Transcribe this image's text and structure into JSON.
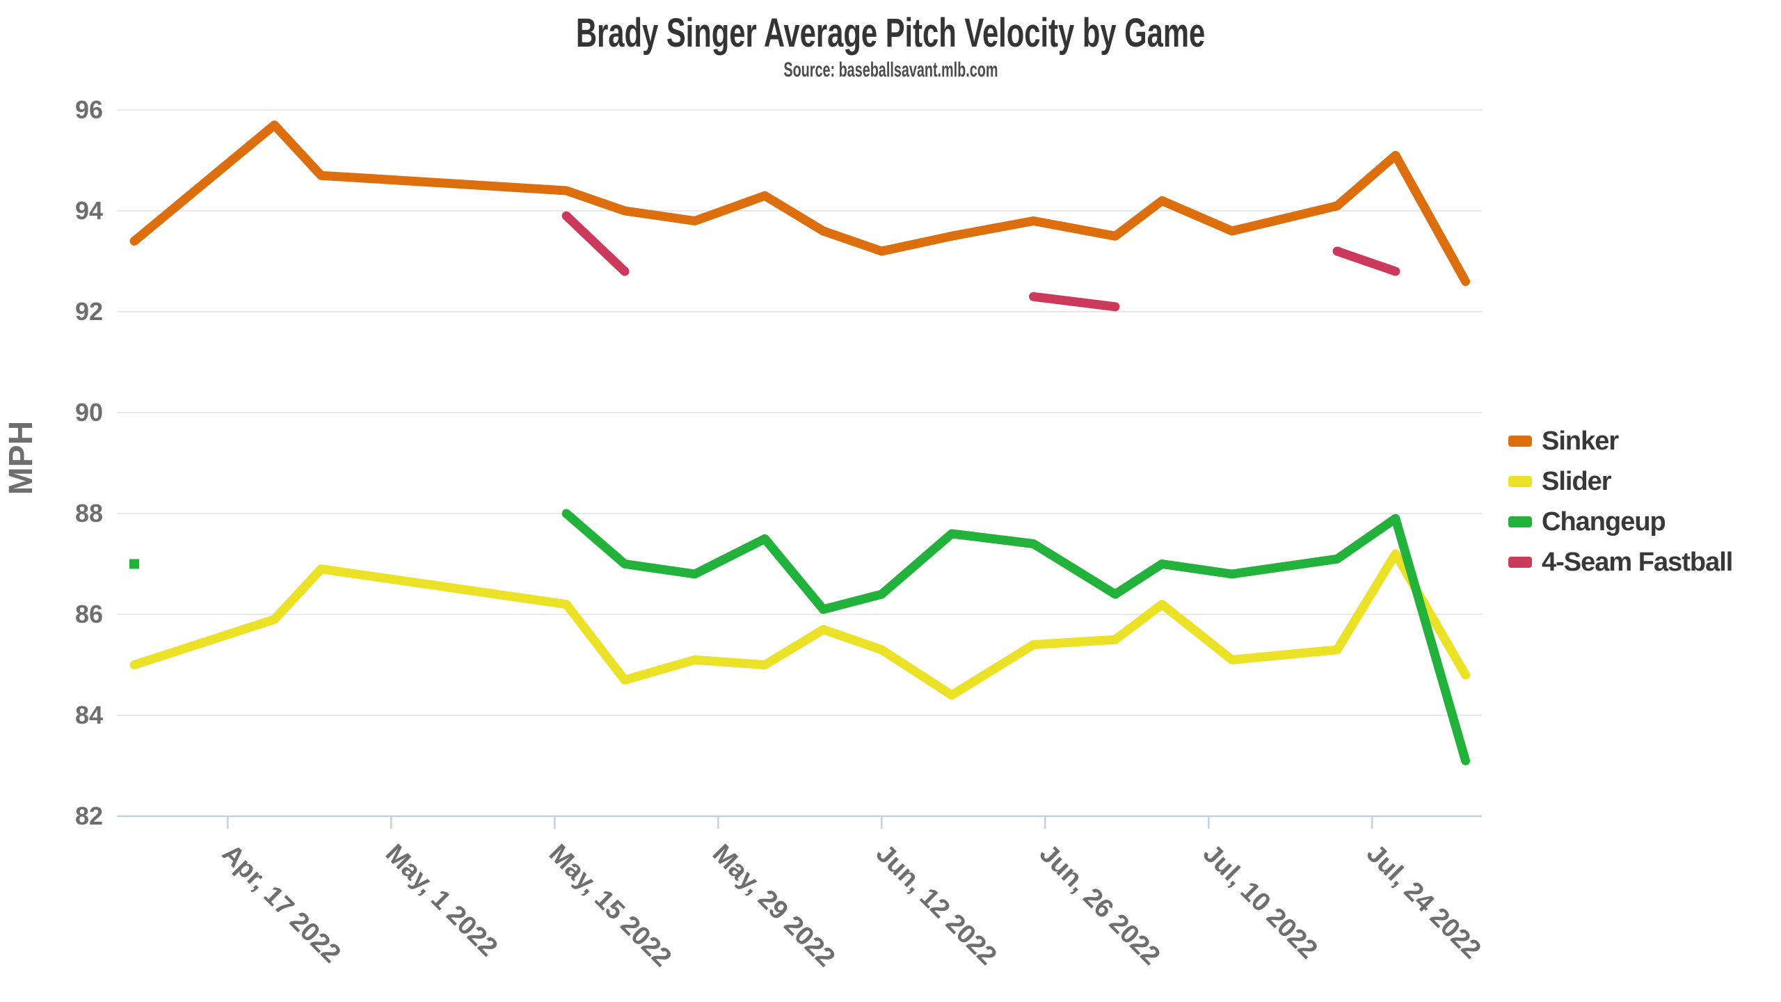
{
  "header": {
    "title": "Brady Singer Average Pitch Velocity by Game",
    "subtitle": "Source: baseballsavant.mlb.com"
  },
  "chart_data": {
    "type": "line",
    "title": "Brady Singer Average Pitch Velocity by Game",
    "subtitle": "Source: baseballsavant.mlb.com",
    "ylabel": "MPH",
    "ylim": [
      82,
      96.6
    ],
    "yticks": [
      82,
      84,
      86,
      88,
      90,
      92,
      94,
      96
    ],
    "gridlines": "horizontal",
    "legend_position": "right",
    "legend_labels": [
      "Sinker",
      "Slider",
      "Changeup",
      "4-Seam Fastball"
    ],
    "x_axis": {
      "unit": "game-date",
      "start_date_label": "Apr 9 2022",
      "tick_labels": [
        "Apr, 17 2022",
        "May, 1 2022",
        "May, 15 2022",
        "May, 29 2022",
        "Jun, 12 2022",
        "Jun, 26 2022",
        "Jul, 10 2022",
        "Jul, 24 2022"
      ],
      "tick_day_offsets": [
        8,
        22,
        36,
        50,
        64,
        78,
        92,
        106
      ],
      "label_rotation_deg": 45
    },
    "games": {
      "dates": [
        "Apr 9",
        "Apr 21",
        "Apr 25",
        "May 16",
        "May 21",
        "May 27",
        "Jun 2",
        "Jun 7",
        "Jun 12",
        "Jun 18",
        "Jun 25",
        "Jul 2",
        "Jul 6",
        "Jul 12",
        "Jul 21",
        "Jul 26",
        "Aug 1"
      ],
      "day_offsets": [
        0,
        12,
        16,
        37,
        42,
        48,
        54,
        59,
        64,
        70,
        77,
        84,
        88,
        94,
        103,
        108,
        114
      ]
    },
    "series": [
      {
        "id": "sinker",
        "name": "Sinker",
        "color": "#DC6E0D",
        "values": [
          93.4,
          95.7,
          94.7,
          94.4,
          94.0,
          93.8,
          94.3,
          93.6,
          93.2,
          93.5,
          93.8,
          93.5,
          94.2,
          93.6,
          94.1,
          95.1,
          92.6
        ]
      },
      {
        "id": "slider",
        "name": "Slider",
        "color": "#EBE227",
        "values": [
          85.0,
          85.9,
          86.9,
          86.2,
          84.7,
          85.1,
          85.0,
          85.7,
          85.3,
          84.4,
          85.4,
          85.5,
          86.2,
          85.1,
          85.3,
          87.2,
          84.8
        ]
      },
      {
        "id": "changeup",
        "name": "Changeup",
        "color": "#22B23C",
        "values": [
          87.0,
          null,
          null,
          88.0,
          87.0,
          86.8,
          87.5,
          86.1,
          86.4,
          87.6,
          87.4,
          86.4,
          87.0,
          86.8,
          87.1,
          87.9,
          83.1
        ]
      },
      {
        "id": "four-seam",
        "name": "4-Seam Fastball",
        "color": "#CC3A5B",
        "values": [
          null,
          null,
          null,
          93.9,
          92.8,
          null,
          null,
          null,
          null,
          null,
          92.3,
          92.1,
          null,
          null,
          93.2,
          92.8,
          null
        ]
      }
    ]
  },
  "style": {
    "axis_line_color": "#c6d0e2",
    "grid_color": "#e8e8e8",
    "axis_label_color": "#6e6e6e",
    "title_color": "#343434",
    "subtitle_color": "#4c4c4c",
    "legend_text_color": "#383838"
  }
}
